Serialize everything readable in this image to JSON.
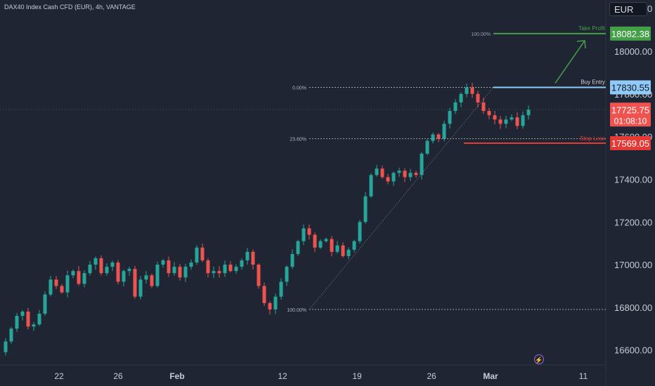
{
  "title": "DAX40 Index Cash CFD (EUR), 4h, VANTAGE",
  "currency": "EUR",
  "flash_glyph": "⚡",
  "colors": {
    "background": "#1f2532",
    "up": "#26a69a",
    "down": "#ef5350",
    "take_profit": "#43a047",
    "buy_entry": "#90caf9",
    "stop_loss": "#e53935",
    "axis_text": "#c8ccd6"
  },
  "chart_data": {
    "type": "candlestick",
    "y_ticks": [
      "16600.00",
      "16800.00",
      "17000.00",
      "17200.00",
      "17400.00",
      "17600.00",
      "17800.00",
      "18000.00",
      "18200.00"
    ],
    "ylim": [
      16530,
      18240
    ],
    "x_ticks": [
      "22",
      "26",
      "Feb",
      "12",
      "19",
      "26",
      "Mar",
      "11"
    ],
    "price_labels": {
      "take_profit": "18082.38",
      "buy_entry": "17830.55",
      "current": "17725.75",
      "countdown": "01:08:10",
      "stop_loss": "17569.05"
    },
    "levels": {
      "take_profit": 18082.38,
      "buy_entry": 17830.55,
      "stop_loss": 17569.05
    },
    "annotations": {
      "take_profit": "Take Profit",
      "buy_entry": "Buy Entry",
      "stop_loss": "Stop Loss"
    },
    "fibonacci": [
      {
        "label": "100.00%",
        "price": 18082.38
      },
      {
        "label": "0.00%",
        "price": 17830.55
      },
      {
        "label": "23.60%",
        "price": 17590
      },
      {
        "label": "100.00%",
        "price": 16790
      }
    ],
    "candle_path": [
      16590,
      16640,
      16700,
      16760,
      16780,
      16710,
      16720,
      16770,
      16860,
      16930,
      16900,
      16870,
      16950,
      16970,
      16910,
      16960,
      17000,
      17030,
      16960,
      16990,
      17010,
      16920,
      16970,
      16980,
      16850,
      16930,
      16950,
      16900,
      17000,
      17020,
      16960,
      16990,
      16940,
      16990,
      17010,
      17080,
      17020,
      16960,
      16970,
      16960,
      17000,
      16970,
      16990,
      17020,
      17060,
      17000,
      16900,
      16820,
      16790,
      16850,
      16920,
      16990,
      17050,
      17110,
      17170,
      17140,
      17080,
      17110,
      17120,
      17060,
      17090,
      17040,
      17070,
      17110,
      17200,
      17320,
      17420,
      17450,
      17410,
      17390,
      17430,
      17440,
      17410,
      17430,
      17420,
      17520,
      17580,
      17610,
      17590,
      17660,
      17720,
      17760,
      17800,
      17830,
      17800,
      17760,
      17720,
      17700,
      17680,
      17660,
      17680,
      17690,
      17650,
      17700,
      17726
    ]
  }
}
